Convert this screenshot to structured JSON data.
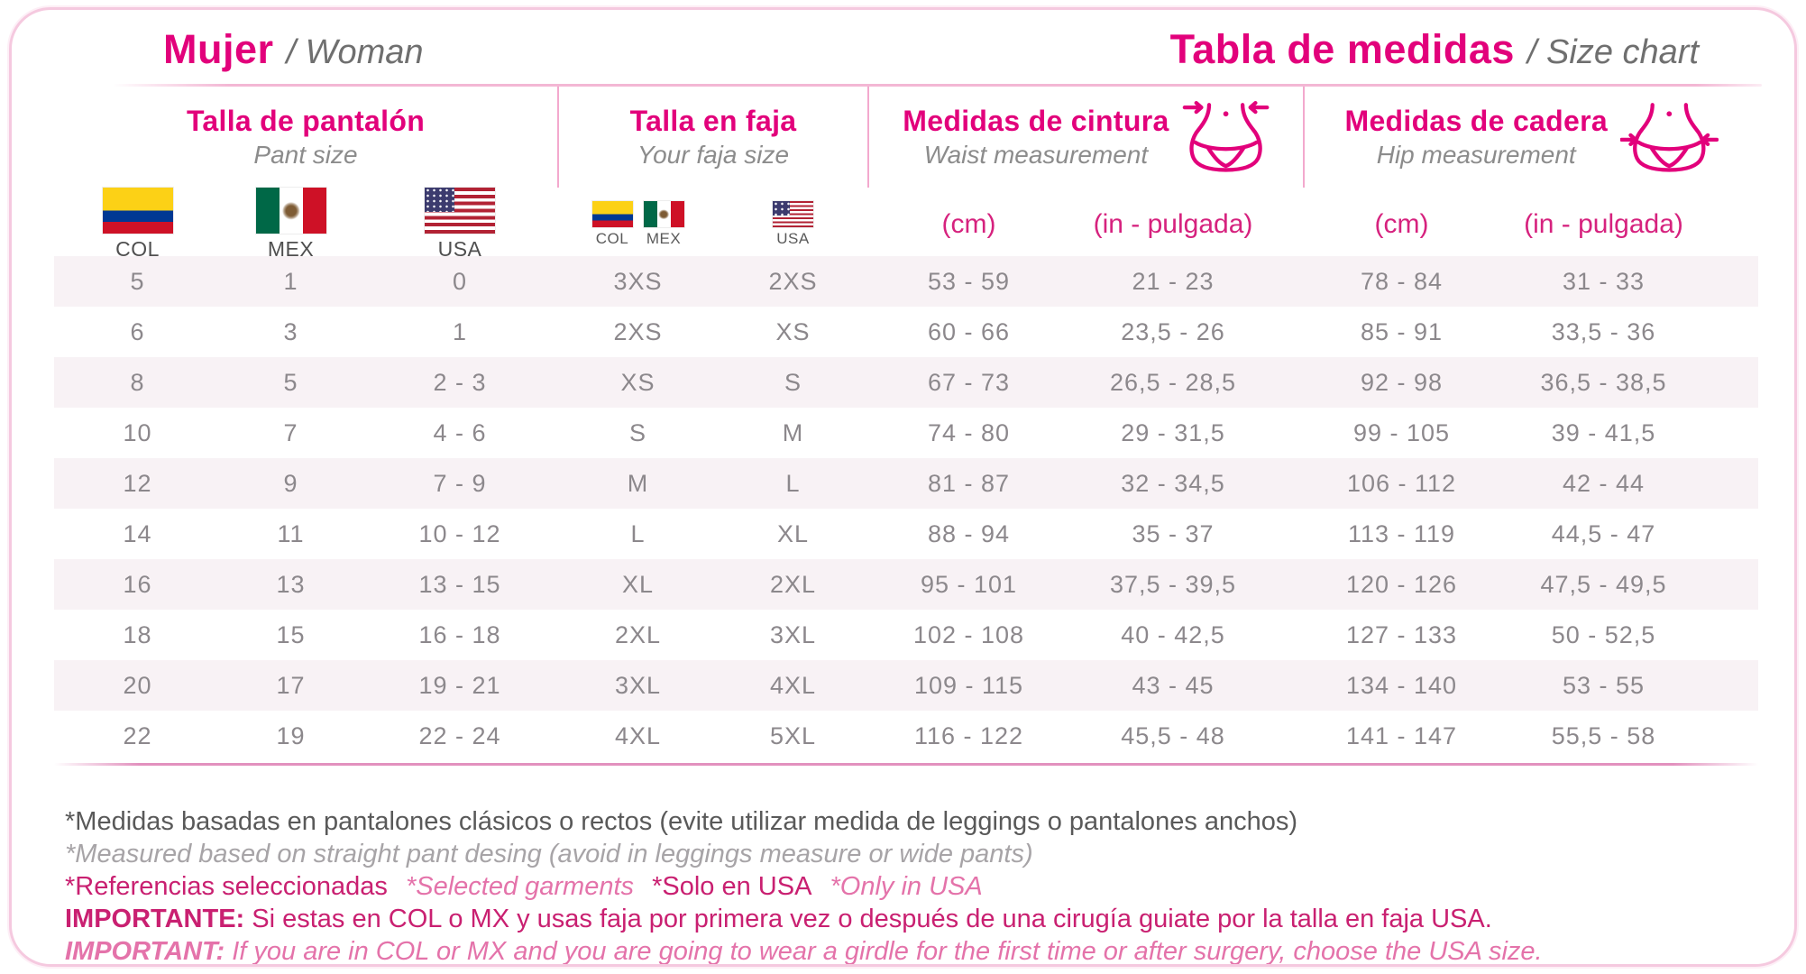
{
  "header": {
    "left_title": "Mujer",
    "left_subtitle": "/ Woman",
    "right_title": "Tabla de medidas",
    "right_subtitle": "/ Size chart"
  },
  "groups": [
    {
      "title": "Talla de pantalón",
      "subtitle": "Pant size"
    },
    {
      "title": "Talla en faja",
      "subtitle": "Your faja size"
    },
    {
      "title": "Medidas de cintura",
      "subtitle": "Waist measurement",
      "icon": "waist-measurement-icon"
    },
    {
      "title": "Medidas de cadera",
      "subtitle": "Hip measurement",
      "icon": "hip-measurement-icon"
    }
  ],
  "subheaders": {
    "pant_flags": [
      {
        "flag": "colombia-flag",
        "label": "COL"
      },
      {
        "flag": "mexico-flag",
        "label": "MEX"
      },
      {
        "flag": "usa-flag",
        "label": "USA"
      }
    ],
    "faja_flags": [
      {
        "flag": "colombia-flag",
        "label": "COL"
      },
      {
        "flag": "mexico-flag",
        "label": "MEX"
      },
      {
        "flag": "usa-flag",
        "label": "USA"
      }
    ],
    "cm_label": "(cm)",
    "in_label": "(in - pulgada)"
  },
  "table": {
    "row_keys": [
      "pant_col",
      "pant_mex",
      "pant_usa",
      "faja_colmex",
      "faja_usa",
      "waist_cm",
      "waist_in",
      "hip_cm",
      "hip_in"
    ],
    "rows": [
      {
        "pant_col": "5",
        "pant_mex": "1",
        "pant_usa": "0",
        "faja_colmex": "3XS",
        "faja_usa": "2XS",
        "waist_cm": "53 - 59",
        "waist_in": "21 - 23",
        "hip_cm": "78 - 84",
        "hip_in": "31 - 33"
      },
      {
        "pant_col": "6",
        "pant_mex": "3",
        "pant_usa": "1",
        "faja_colmex": "2XS",
        "faja_usa": "XS",
        "waist_cm": "60 - 66",
        "waist_in": "23,5 - 26",
        "hip_cm": "85 - 91",
        "hip_in": "33,5 - 36"
      },
      {
        "pant_col": "8",
        "pant_mex": "5",
        "pant_usa": "2 - 3",
        "faja_colmex": "XS",
        "faja_usa": "S",
        "waist_cm": "67 - 73",
        "waist_in": "26,5 - 28,5",
        "hip_cm": "92 - 98",
        "hip_in": "36,5 - 38,5"
      },
      {
        "pant_col": "10",
        "pant_mex": "7",
        "pant_usa": "4 - 6",
        "faja_colmex": "S",
        "faja_usa": "M",
        "waist_cm": "74 - 80",
        "waist_in": "29 - 31,5",
        "hip_cm": "99 - 105",
        "hip_in": "39 - 41,5"
      },
      {
        "pant_col": "12",
        "pant_mex": "9",
        "pant_usa": "7 - 9",
        "faja_colmex": "M",
        "faja_usa": "L",
        "waist_cm": "81 - 87",
        "waist_in": "32 - 34,5",
        "hip_cm": "106 - 112",
        "hip_in": "42 - 44"
      },
      {
        "pant_col": "14",
        "pant_mex": "11",
        "pant_usa": "10 - 12",
        "faja_colmex": "L",
        "faja_usa": "XL",
        "waist_cm": "88 - 94",
        "waist_in": "35 - 37",
        "hip_cm": "113 - 119",
        "hip_in": "44,5 - 47"
      },
      {
        "pant_col": "16",
        "pant_mex": "13",
        "pant_usa": "13 - 15",
        "faja_colmex": "XL",
        "faja_usa": "2XL",
        "waist_cm": "95 - 101",
        "waist_in": "37,5 - 39,5",
        "hip_cm": "120 - 126",
        "hip_in": "47,5 - 49,5"
      },
      {
        "pant_col": "18",
        "pant_mex": "15",
        "pant_usa": "16 - 18",
        "faja_colmex": "2XL",
        "faja_usa": "3XL",
        "waist_cm": "102 - 108",
        "waist_in": "40 - 42,5",
        "hip_cm": "127 - 133",
        "hip_in": "50 - 52,5"
      },
      {
        "pant_col": "20",
        "pant_mex": "17",
        "pant_usa": "19 - 21",
        "faja_colmex": "3XL",
        "faja_usa": "4XL",
        "waist_cm": "109 - 115",
        "waist_in": "43 - 45",
        "hip_cm": "134 - 140",
        "hip_in": "53 - 55"
      },
      {
        "pant_col": "22",
        "pant_mex": "19",
        "pant_usa": "22 - 24",
        "faja_colmex": "4XL",
        "faja_usa": "5XL",
        "waist_cm": "116 - 122",
        "waist_in": "45,5 - 48",
        "hip_cm": "141 - 147",
        "hip_in": "55,5 - 58"
      }
    ]
  },
  "notes": {
    "measure_es": "*Medidas basadas en pantalones clásicos o rectos (evite utilizar medida de leggings o pantalones anchos)",
    "measure_en": "*Measured based on straight pant desing (avoid in leggings measure or wide pants)",
    "ref_es": "*Referencias seleccionadas",
    "ref_en": "*Selected garments",
    "usa_es": "*Solo en USA",
    "usa_en": "*Only in USA",
    "important_es_label": "IMPORTANTE:",
    "important_es_text": "Si estas en COL o MX y usas faja por primera vez o después de una cirugía guiate por la talla en faja USA.",
    "important_en_label": "IMPORTANT:",
    "important_en_text": "If you are in COL or MX and you are going to wear a girdle for the first time or after surgery, choose the USA size."
  },
  "colors": {
    "magenta": "#E2017B",
    "unit_pink": "#D6227E",
    "note_dark_pink": "#C92071",
    "note_light_pink": "#E473AA",
    "row_shade": "#F8F2F5",
    "card_border": "#F5C9DF"
  }
}
